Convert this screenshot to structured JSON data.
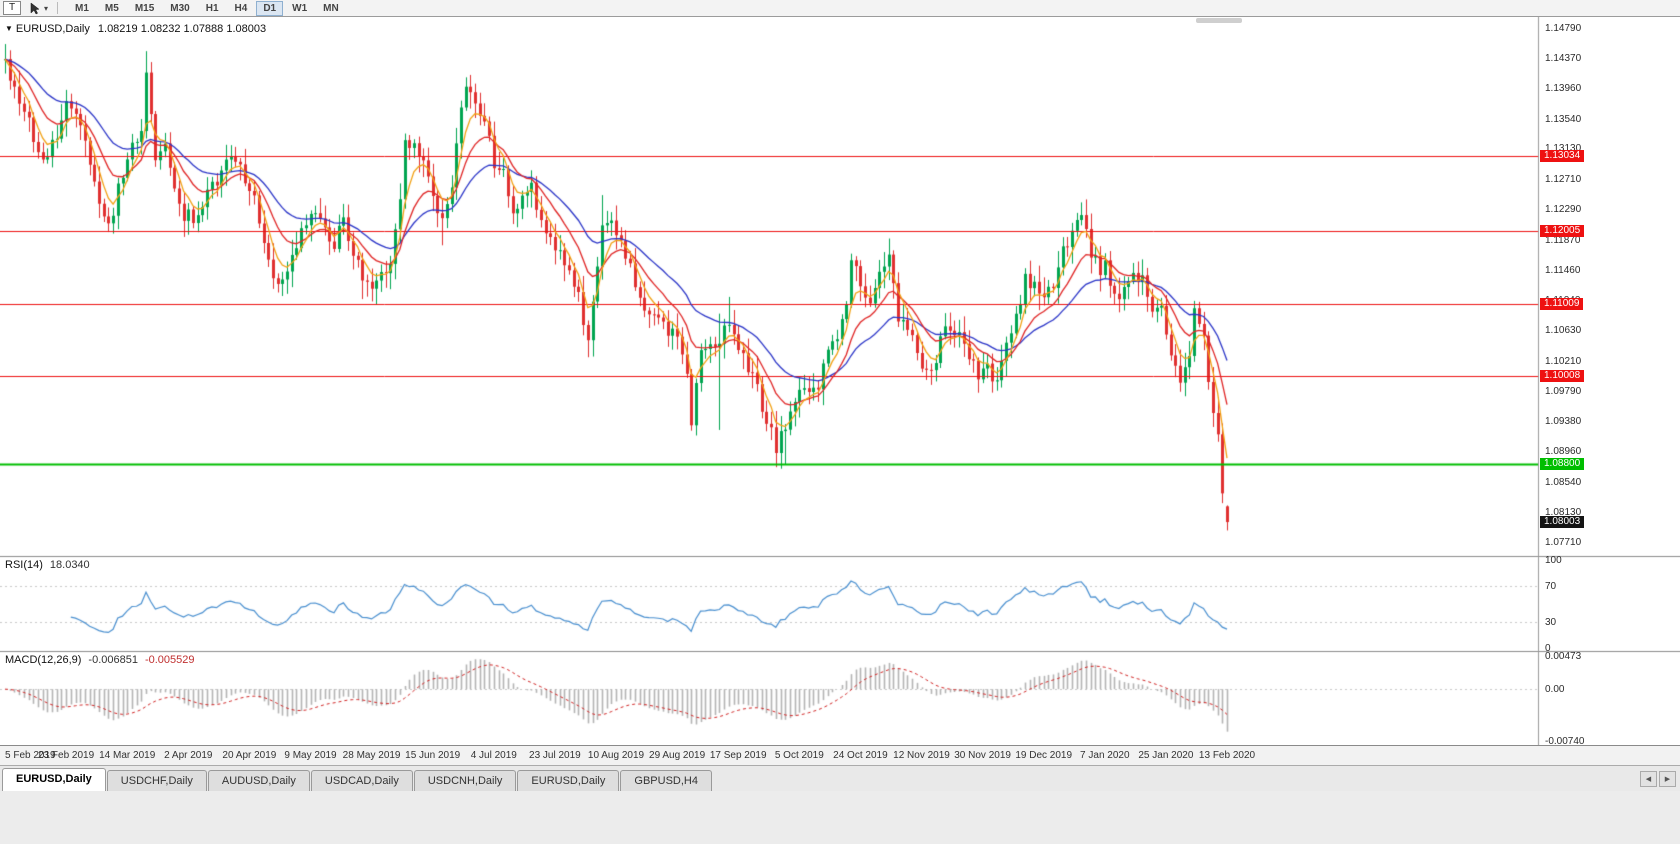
{
  "toolbar": {
    "t_label": "T",
    "timeframes": [
      {
        "label": "M1",
        "active": false
      },
      {
        "label": "M5",
        "active": false
      },
      {
        "label": "M15",
        "active": false
      },
      {
        "label": "M30",
        "active": false
      },
      {
        "label": "H1",
        "active": false
      },
      {
        "label": "H4",
        "active": false
      },
      {
        "label": "D1",
        "active": true
      },
      {
        "label": "W1",
        "active": false
      },
      {
        "label": "MN",
        "active": false
      }
    ]
  },
  "icons": {
    "symbol_triangle": "▼",
    "dropdown_caret": "▾",
    "tab_scroll_left": "◀",
    "tab_scroll_right": "▶"
  },
  "chart": {
    "symbol": "EURUSD,Daily",
    "ohlc": "1.08219 1.08232 1.07888 1.08003"
  },
  "price_axis": {
    "labels": [
      "1.14790",
      "1.14370",
      "1.13960",
      "1.13540",
      "1.13130",
      "1.12710",
      "1.12290",
      "1.11870",
      "1.11460",
      "1.11040",
      "1.10630",
      "1.10210",
      "1.09790",
      "1.09380",
      "1.08960",
      "1.08540",
      "1.08130",
      "1.07710"
    ]
  },
  "hlines": [
    {
      "label": "1.13034",
      "price": 1.13034,
      "color": "#EE1111",
      "width": 1
    },
    {
      "label": "1.12005",
      "price": 1.12005,
      "color": "#EE1111",
      "width": 1
    },
    {
      "label": "1.11009",
      "price": 1.11009,
      "color": "#EE1111",
      "width": 1
    },
    {
      "label": "1.10008",
      "price": 1.10008,
      "color": "#EE1111",
      "width": 1
    },
    {
      "label": "1.08800",
      "price": 1.088,
      "color": "#00BE00",
      "width": 2
    }
  ],
  "current_price": {
    "label": "1.08003",
    "price": 1.08003,
    "color": "#141414"
  },
  "rsi": {
    "name": "RSI(14)",
    "value": "18.0340",
    "color": "#4A90D0",
    "axis": [
      {
        "label": "100",
        "v": 100
      },
      {
        "label": "70",
        "v": 70
      },
      {
        "label": "30",
        "v": 30
      },
      {
        "label": "0",
        "v": 0
      }
    ]
  },
  "macd": {
    "name": "MACD(12,26,9)",
    "value_main": "-0.006851",
    "value_signal": "-0.005529",
    "hist_color": "#B4B4B4",
    "signal_color": "#D22525",
    "axis": [
      {
        "label": "0.00473",
        "v": 0.00473
      },
      {
        "label": "0.00",
        "v": 0
      },
      {
        "label": "-0.00740",
        "v": -0.0074
      }
    ]
  },
  "date_axis": [
    "5 Feb 2019",
    "23 Feb 2019",
    "14 Mar 2019",
    "2 Apr 2019",
    "20 Apr 2019",
    "9 May 2019",
    "28 May 2019",
    "15 Jun 2019",
    "4 Jul 2019",
    "23 Jul 2019",
    "10 Aug 2019",
    "29 Aug 2019",
    "17 Sep 2019",
    "5 Oct 2019",
    "24 Oct 2019",
    "12 Nov 2019",
    "30 Nov 2019",
    "19 Dec 2019",
    "7 Jan 2020",
    "25 Jan 2020",
    "13 Feb 2020"
  ],
  "tabs": [
    {
      "label": "EURUSD,Daily",
      "active": true
    },
    {
      "label": "USDCHF,Daily",
      "active": false
    },
    {
      "label": "AUDUSD,Daily",
      "active": false
    },
    {
      "label": "USDCAD,Daily",
      "active": false
    },
    {
      "label": "USDCNH,Daily",
      "active": false
    },
    {
      "label": "EURUSD,Daily",
      "active": false
    },
    {
      "label": "GBPUSD,H4",
      "active": false
    }
  ],
  "colors": {
    "up": "#00A550",
    "down": "#E03030",
    "ma_fast": "#F2A113",
    "ma_mid": "#E02525",
    "ma_slow": "#2B35C8",
    "hline_red": "#EE1111",
    "hline_green": "#00BE00"
  },
  "chart_data": {
    "type": "candlestick",
    "symbol": "EURUSD",
    "timeframe": "Daily",
    "count": 261,
    "last_candle": {
      "open": 1.08219,
      "high": 1.08232,
      "low": 1.07888,
      "close": 1.08003
    },
    "price_range": {
      "top": 1.1495,
      "bottom": 1.0755
    },
    "levels": [
      1.13034,
      1.12005,
      1.11009,
      1.10008,
      1.088
    ],
    "dates": [
      "5 Feb 2019",
      "23 Feb 2019",
      "14 Mar 2019",
      "2 Apr 2019",
      "20 Apr 2019",
      "9 May 2019",
      "28 May 2019",
      "15 Jun 2019",
      "4 Jul 2019",
      "23 Jul 2019",
      "10 Aug 2019",
      "29 Aug 2019",
      "17 Sep 2019",
      "5 Oct 2019",
      "24 Oct 2019",
      "12 Nov 2019",
      "30 Nov 2019",
      "19 Dec 2019",
      "7 Jan 2020",
      "25 Jan 2020",
      "13 Feb 2020"
    ],
    "anchors": [
      [
        0,
        1.143
      ],
      [
        2,
        1.1402
      ],
      [
        5,
        1.1352
      ],
      [
        8,
        1.1292
      ],
      [
        11,
        1.1332
      ],
      [
        13,
        1.1376
      ],
      [
        15,
        1.136
      ],
      [
        18,
        1.1302
      ],
      [
        20,
        1.1236
      ],
      [
        22,
        1.1202
      ],
      [
        24,
        1.1256
      ],
      [
        26,
        1.13
      ],
      [
        29,
        1.1346
      ],
      [
        30,
        1.141
      ],
      [
        31,
        1.1372
      ],
      [
        32,
        1.1306
      ],
      [
        34,
        1.1312
      ],
      [
        36,
        1.1252
      ],
      [
        38,
        1.1222
      ],
      [
        40,
        1.1218
      ],
      [
        42,
        1.1232
      ],
      [
        44,
        1.1262
      ],
      [
        47,
        1.1292
      ],
      [
        49,
        1.1302
      ],
      [
        51,
        1.1262
      ],
      [
        53,
        1.124
      ],
      [
        55,
        1.119
      ],
      [
        57,
        1.1136
      ],
      [
        58,
        1.112
      ],
      [
        60,
        1.1152
      ],
      [
        62,
        1.1182
      ],
      [
        64,
        1.1206
      ],
      [
        66,
        1.1236
      ],
      [
        68,
        1.1206
      ],
      [
        70,
        1.1182
      ],
      [
        72,
        1.1212
      ],
      [
        74,
        1.1172
      ],
      [
        76,
        1.113
      ],
      [
        78,
        1.112
      ],
      [
        80,
        1.1136
      ],
      [
        82,
        1.1166
      ],
      [
        84,
        1.1236
      ],
      [
        85,
        1.1318
      ],
      [
        87,
        1.1332
      ],
      [
        89,
        1.1288
      ],
      [
        91,
        1.1242
      ],
      [
        93,
        1.1212
      ],
      [
        95,
        1.1262
      ],
      [
        97,
        1.1368
      ],
      [
        98,
        1.139
      ],
      [
        100,
        1.1372
      ],
      [
        102,
        1.1362
      ],
      [
        104,
        1.1292
      ],
      [
        106,
        1.1282
      ],
      [
        108,
        1.1224
      ],
      [
        110,
        1.1252
      ],
      [
        112,
        1.1268
      ],
      [
        114,
        1.1212
      ],
      [
        117,
        1.1182
      ],
      [
        120,
        1.1142
      ],
      [
        122,
        1.1112
      ],
      [
        124,
        1.1044
      ],
      [
        126,
        1.1152
      ],
      [
        127,
        1.1202
      ],
      [
        129,
        1.1212
      ],
      [
        131,
        1.1182
      ],
      [
        133,
        1.1152
      ],
      [
        135,
        1.1104
      ],
      [
        137,
        1.1094
      ],
      [
        139,
        1.1084
      ],
      [
        141,
        1.1064
      ],
      [
        143,
        1.1052
      ],
      [
        145,
        1.0994
      ],
      [
        146,
        1.0944
      ],
      [
        148,
        1.1032
      ],
      [
        150,
        1.1034
      ],
      [
        152,
        1.1054
      ],
      [
        154,
        1.1072
      ],
      [
        156,
        1.1042
      ],
      [
        158,
        1.1012
      ],
      [
        160,
        1.0982
      ],
      [
        162,
        1.0944
      ],
      [
        164,
        1.0904
      ],
      [
        166,
        1.0932
      ],
      [
        168,
        1.0962
      ],
      [
        169,
        1.0982
      ],
      [
        171,
        1.0972
      ],
      [
        173,
        1.0992
      ],
      [
        175,
        1.1032
      ],
      [
        177,
        1.1054
      ],
      [
        179,
        1.1094
      ],
      [
        180,
        1.1152
      ],
      [
        182,
        1.1132
      ],
      [
        184,
        1.1104
      ],
      [
        186,
        1.1152
      ],
      [
        188,
        1.1162
      ],
      [
        190,
        1.1074
      ],
      [
        192,
        1.1074
      ],
      [
        194,
        1.1032
      ],
      [
        196,
        1.1012
      ],
      [
        197,
        1.1004
      ],
      [
        199,
        1.1052
      ],
      [
        201,
        1.1072
      ],
      [
        203,
        1.1062
      ],
      [
        205,
        1.1022
      ],
      [
        207,
        1.1004
      ],
      [
        209,
        1.1012
      ],
      [
        211,
        1.099
      ],
      [
        213,
        1.1052
      ],
      [
        215,
        1.1082
      ],
      [
        217,
        1.1132
      ],
      [
        219,
        1.1122
      ],
      [
        221,
        1.1112
      ],
      [
        223,
        1.1122
      ],
      [
        225,
        1.1172
      ],
      [
        227,
        1.1202
      ],
      [
        229,
        1.1222
      ],
      [
        231,
        1.1172
      ],
      [
        233,
        1.1142
      ],
      [
        234,
        1.1152
      ],
      [
        236,
        1.1112
      ],
      [
        238,
        1.1122
      ],
      [
        240,
        1.1132
      ],
      [
        242,
        1.1142
      ],
      [
        244,
        1.1094
      ],
      [
        246,
        1.1092
      ],
      [
        247,
        1.1062
      ],
      [
        248,
        1.1022
      ],
      [
        250,
        1.1002
      ],
      [
        252,
        1.1022
      ],
      [
        253,
        1.109
      ],
      [
        255,
        1.1062
      ],
      [
        256,
        1.1002
      ],
      [
        257,
        1.0958
      ],
      [
        258,
        1.0912
      ],
      [
        259,
        1.085
      ],
      [
        260,
        1.08
      ]
    ],
    "specials": [
      {
        "i": 30,
        "h": 1.1448
      },
      {
        "i": 76,
        "l": 1.1107
      },
      {
        "i": 93,
        "l": 1.1181
      },
      {
        "i": 98,
        "h": 1.1412
      },
      {
        "i": 124,
        "l": 1.1027
      },
      {
        "i": 127,
        "h": 1.125
      },
      {
        "i": 146,
        "l": 1.0926
      },
      {
        "i": 152,
        "h": 1.1087,
        "l": 1.0927
      },
      {
        "i": 154,
        "h": 1.111
      },
      {
        "i": 166,
        "l": 1.0879
      },
      {
        "i": 197,
        "l": 1.0989
      },
      {
        "i": 211,
        "l": 1.0981
      },
      {
        "i": 229,
        "h": 1.124
      },
      {
        "i": 260,
        "o": 1.08219,
        "h": 1.08232,
        "l": 1.07888,
        "c": 1.08003
      }
    ],
    "moving_averages": [
      {
        "period": 5,
        "color_key": "ma_fast"
      },
      {
        "period": 12,
        "color_key": "ma_mid"
      },
      {
        "period": 26,
        "color_key": "ma_slow"
      }
    ],
    "indicators": [
      {
        "name": "RSI",
        "period": 14,
        "current": 18.034,
        "levels": [
          70,
          30
        ]
      },
      {
        "name": "MACD",
        "params": [
          12,
          26,
          9
        ],
        "current": [
          -0.006851,
          -0.005529
        ]
      }
    ]
  }
}
